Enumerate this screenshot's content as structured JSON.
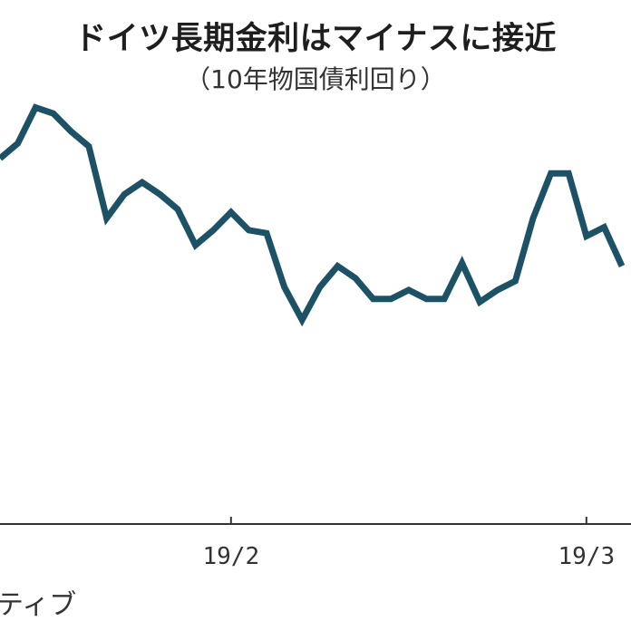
{
  "title": "ドイツ長期金利はマイナスに接近",
  "subtitle": "（10年物国債利回り）",
  "source": "ティブ",
  "chart_data": {
    "type": "line",
    "title": "ドイツ長期金利はマイナスに接近",
    "subtitle": "（10年物国債利回り）",
    "xlabel": "",
    "ylabel": "",
    "ylim": [
      0,
      100
    ],
    "grid": false,
    "x_ticks": [
      {
        "label": "19/2",
        "index": 13
      },
      {
        "label": "19/3",
        "index": 33
      }
    ],
    "series": [
      {
        "color": "#1d5266",
        "values": [
          81,
          86,
          98,
          96,
          90,
          85,
          61,
          69,
          73,
          69,
          64,
          52,
          57,
          63,
          57,
          56,
          38,
          27,
          38,
          45,
          41,
          34,
          34,
          37,
          34,
          34,
          46,
          33,
          37,
          40,
          61,
          76,
          76,
          55,
          58,
          45
        ]
      }
    ]
  }
}
